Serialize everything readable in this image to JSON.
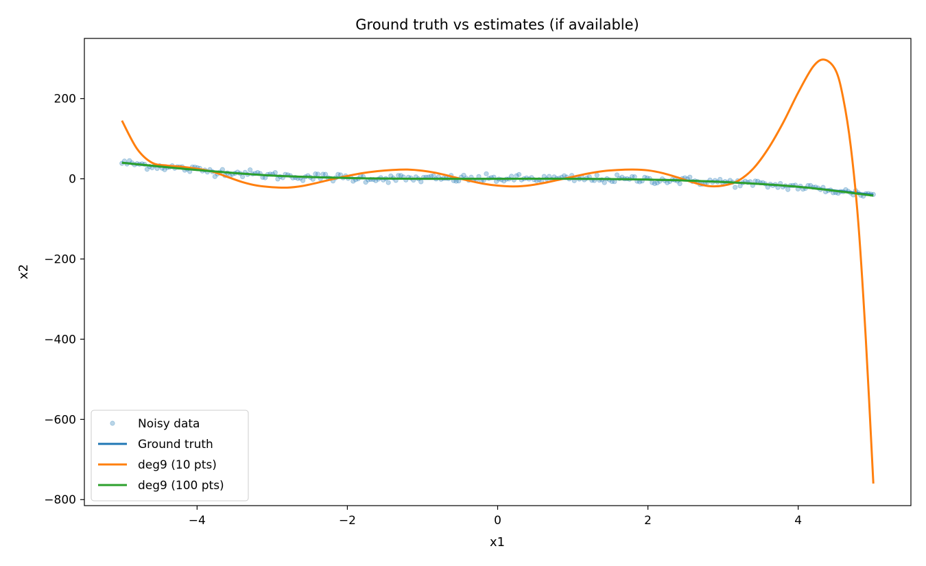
{
  "chart_data": {
    "type": "line",
    "title": "Ground truth vs estimates (if available)",
    "xlabel": "x1",
    "ylabel": "x2",
    "xlim": [
      -5.5,
      5.5
    ],
    "ylim": [
      -815,
      350
    ],
    "xticks": [
      -4,
      -2,
      0,
      2,
      4
    ],
    "yticks": [
      200,
      0,
      -200,
      -400,
      -600,
      -800
    ],
    "xtick_labels": [
      "−4",
      "−2",
      "0",
      "2",
      "4"
    ],
    "ytick_labels": [
      "200",
      "0",
      "−200",
      "−400",
      "−600",
      "−800"
    ],
    "grid": false,
    "legend_position": "lower-left",
    "legend": [
      {
        "label": "Noisy data",
        "kind": "scatter",
        "color": "#1f77b4"
      },
      {
        "label": "Ground truth",
        "kind": "line",
        "color": "#1f77b4"
      },
      {
        "label": "deg9 (10 pts)",
        "kind": "line",
        "color": "#ff7f0e"
      },
      {
        "label": "deg9 (100 pts)",
        "kind": "line",
        "color": "#2ca02c"
      }
    ],
    "series": [
      {
        "name": "Noisy data",
        "kind": "scatter",
        "color": "#1f77b4",
        "x_range": [
          -5,
          5
        ],
        "approx_points": 300,
        "noise_std": 5,
        "follows": "Ground truth"
      },
      {
        "name": "Ground truth",
        "kind": "line",
        "color": "#1f77b4",
        "x": [
          -5,
          -4,
          -3,
          -2,
          -1,
          0,
          1,
          2,
          3,
          4,
          5
        ],
        "y": [
          40,
          22,
          8,
          2,
          0,
          0,
          0,
          -2,
          -8,
          -20,
          -40
        ]
      },
      {
        "name": "deg9 (10 pts)",
        "kind": "line",
        "color": "#ff7f0e",
        "x": [
          -5,
          -4.8,
          -4.6,
          -4.4,
          -4.2,
          -4,
          -3.8,
          -3.6,
          -3.4,
          -3.2,
          -3,
          -2.8,
          -2.6,
          -2.4,
          -2.2,
          -2,
          -1.8,
          -1.6,
          -1.4,
          -1.2,
          -1,
          -0.8,
          -0.6,
          -0.4,
          -0.2,
          0,
          0.2,
          0.4,
          0.6,
          0.8,
          1,
          1.2,
          1.4,
          1.6,
          1.8,
          2,
          2.2,
          2.4,
          2.6,
          2.8,
          3,
          3.2,
          3.4,
          3.6,
          3.8,
          4,
          4.2,
          4.35,
          4.5,
          4.6,
          4.7,
          4.8,
          4.9,
          5
        ],
        "y": [
          145,
          75,
          40,
          33,
          30,
          25,
          18,
          5,
          -8,
          -17,
          -21,
          -22,
          -18,
          -10,
          -1,
          7,
          14,
          19,
          22,
          23,
          20,
          14,
          5,
          -4,
          -12,
          -17,
          -19,
          -17,
          -11,
          -3,
          5,
          13,
          19,
          22,
          23,
          21,
          14,
          3,
          -9,
          -18,
          -17,
          -5,
          25,
          75,
          140,
          215,
          280,
          297,
          270,
          200,
          80,
          -110,
          -400,
          -760
        ]
      },
      {
        "name": "deg9 (100 pts)",
        "kind": "line",
        "color": "#2ca02c",
        "x": [
          -5,
          -4,
          -3,
          -2,
          -1,
          0,
          1,
          2,
          3,
          4,
          5
        ],
        "y": [
          40,
          22,
          8,
          2,
          0,
          0,
          0,
          -2,
          -8,
          -20,
          -42
        ]
      }
    ]
  }
}
